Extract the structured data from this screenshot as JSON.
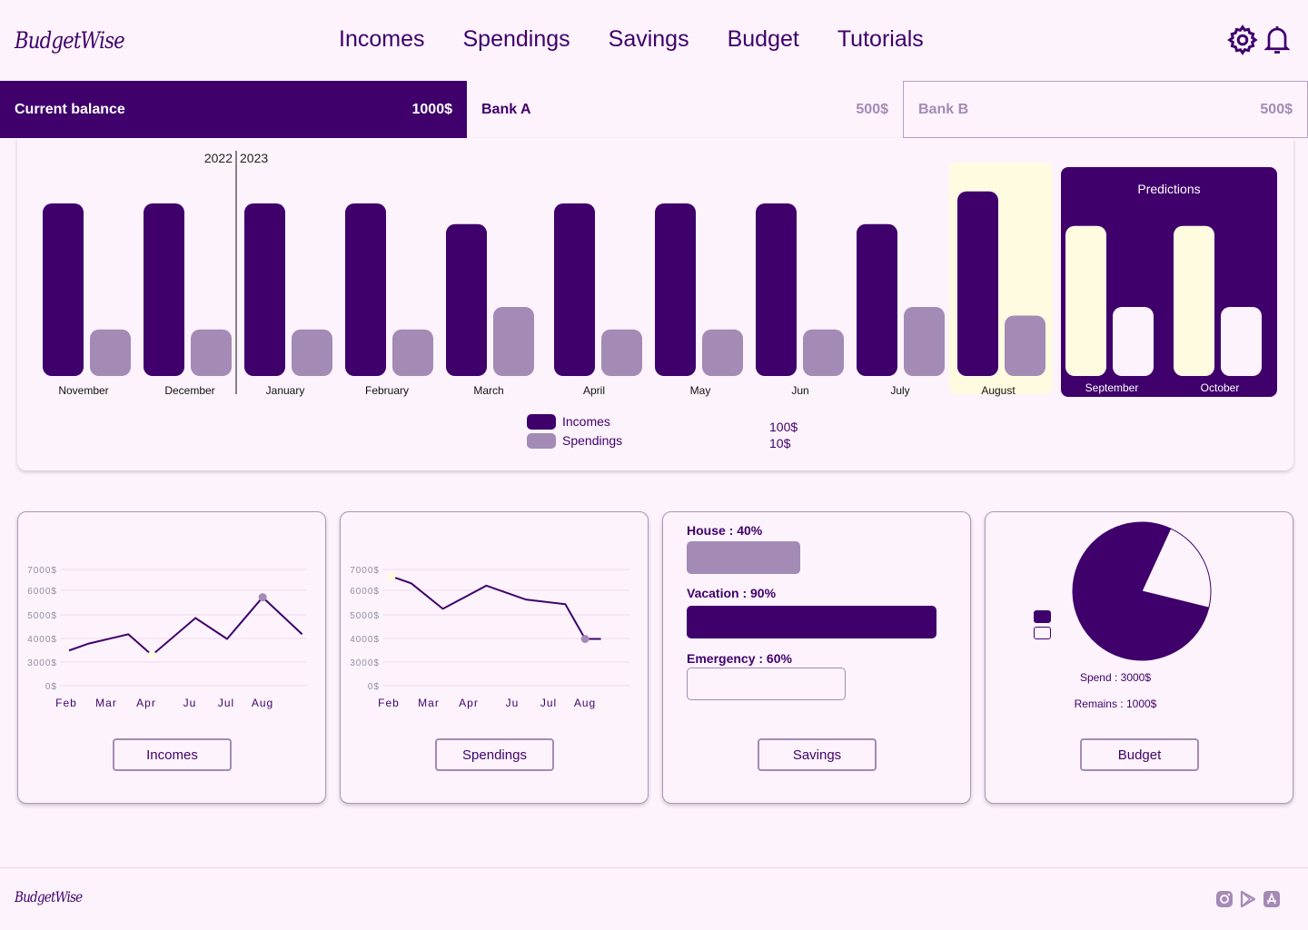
{
  "brand": {
    "name": "BudgetWise"
  },
  "nav": [
    "Incomes",
    "Spendings",
    "Savings",
    "Budget",
    "Tutorials"
  ],
  "header_icons": [
    "gear-icon",
    "bell-icon"
  ],
  "balances": {
    "current": {
      "label": "Current balance",
      "amount": "1000$"
    },
    "bank_a": {
      "label": "Bank A",
      "amount": "500$"
    },
    "bank_b": {
      "label": "Bank B",
      "amount": "500$"
    }
  },
  "colors": {
    "primary": "#3f006c",
    "secondary": "#a38bb5",
    "highlight": "#fffbe1",
    "background": "#fdf3fc"
  },
  "chart_data": [
    {
      "type": "bar",
      "categories": [
        "November",
        "December",
        "January",
        "February",
        "March",
        "April",
        "May",
        "Jun",
        "July",
        "August"
      ],
      "series": [
        {
          "name": "Incomes",
          "values": [
            100,
            100,
            100,
            100,
            88,
            100,
            100,
            100,
            88,
            107
          ]
        },
        {
          "name": "Spendings",
          "values": [
            27,
            27,
            27,
            27,
            40,
            27,
            27,
            27,
            40,
            35
          ]
        }
      ],
      "predictions": {
        "title": "Predictions",
        "categories": [
          "September",
          "October"
        ],
        "incomes": [
          87,
          87
        ],
        "spendings": [
          40,
          40
        ]
      },
      "year_labels": [
        "2022",
        "2023"
      ],
      "highlighted_category": "August",
      "legend_values": [
        "100$",
        "10$"
      ],
      "ylim": [
        0,
        120
      ]
    },
    {
      "type": "line",
      "title": "Incomes",
      "x": [
        "Feb",
        "Mar",
        "Apr",
        "Ju",
        "Jul",
        "Aug"
      ],
      "y_ticks": [
        "7000$",
        "6000$",
        "5000$",
        "4000$",
        "3000$",
        "0$"
      ],
      "points": [
        [
          0,
          3500
        ],
        [
          0.5,
          3800
        ],
        [
          1.5,
          4200
        ],
        [
          2.1,
          3300
        ],
        [
          3.2,
          4900
        ],
        [
          4.0,
          4000
        ],
        [
          4.9,
          5800
        ],
        [
          5.9,
          4200
        ]
      ]
    },
    {
      "type": "line",
      "title": "Spendings",
      "x": [
        "Feb",
        "Mar",
        "Apr",
        "Ju",
        "Jul",
        "Aug"
      ],
      "y_ticks": [
        "7000$",
        "6000$",
        "5000$",
        "4000$",
        "3000$",
        "0$"
      ],
      "points": [
        [
          0,
          6700
        ],
        [
          0.5,
          6400
        ],
        [
          1.3,
          5300
        ],
        [
          2.4,
          6300
        ],
        [
          3.4,
          5700
        ],
        [
          4.4,
          5500
        ],
        [
          4.9,
          4000
        ],
        [
          5.3,
          4000
        ]
      ]
    },
    {
      "type": "pie",
      "title": "Budget",
      "slices": [
        {
          "label": "Spend",
          "value": 3000
        },
        {
          "label": "Remains",
          "value": 1000
        }
      ]
    }
  ],
  "cards": {
    "incomes": {
      "button": "Incomes"
    },
    "spendings": {
      "button": "Spendings"
    },
    "savings": {
      "button": "Savings",
      "goals": [
        {
          "label": "House : 40%",
          "percent": 40,
          "style": "secondary"
        },
        {
          "label": "Vacation : 90%",
          "percent": 90,
          "style": "primary"
        },
        {
          "label": "Emergency : 60%",
          "percent": 60,
          "style": "empty"
        }
      ]
    },
    "budget": {
      "button": "Budget",
      "spend_text": "Spend : 3000$",
      "remains_text": "Remains : 1000$"
    }
  },
  "footer": {
    "brand": "BudgetWise",
    "icons": [
      "instagram-icon",
      "google-play-icon",
      "app-store-icon"
    ]
  }
}
